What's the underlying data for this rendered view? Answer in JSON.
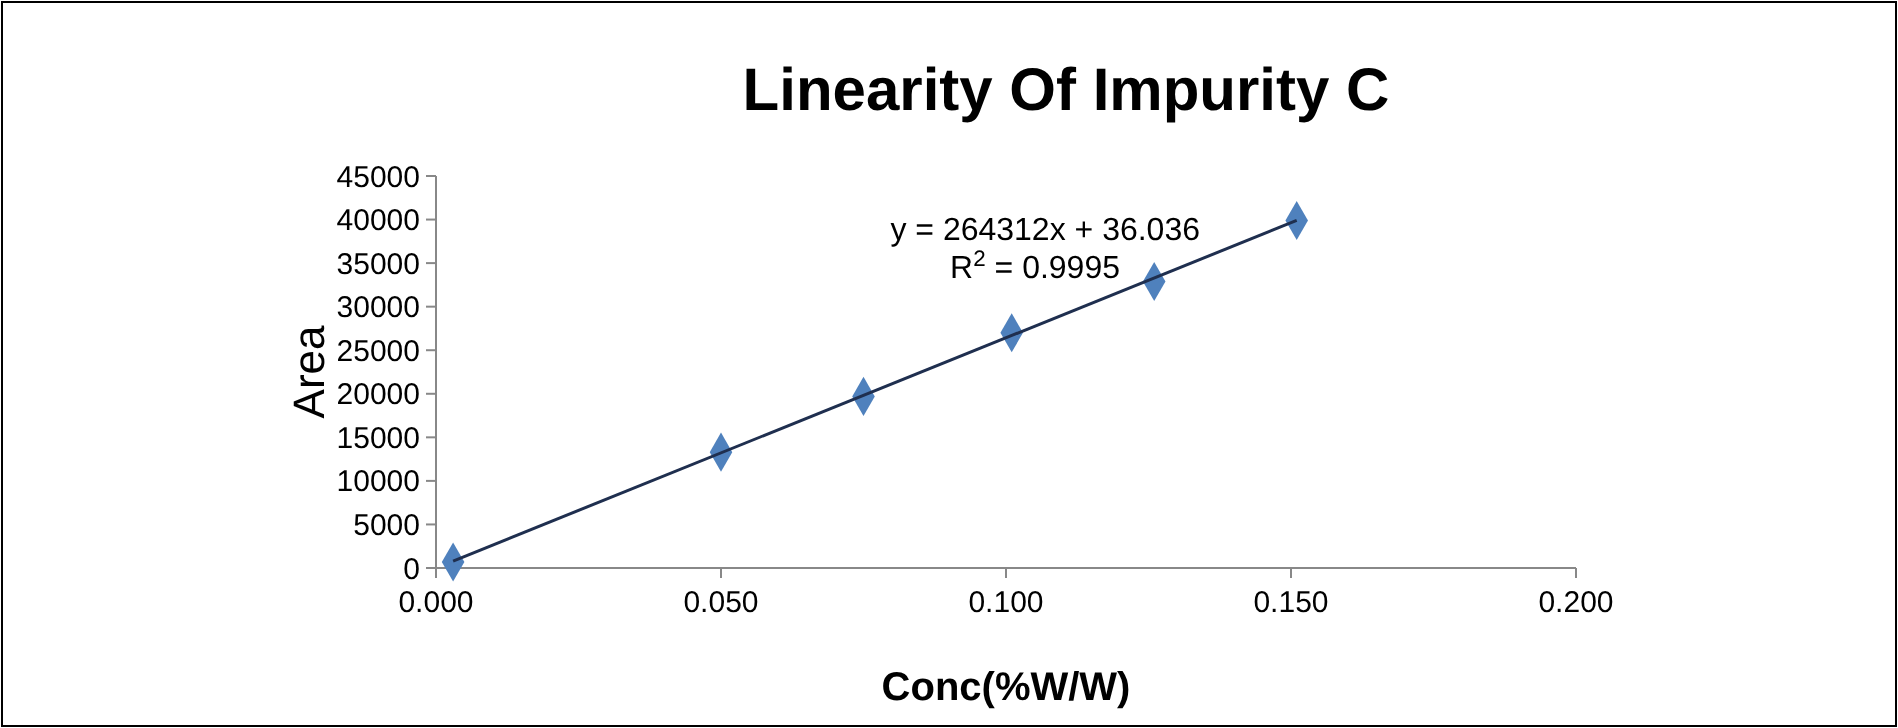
{
  "chart_data": {
    "type": "scatter",
    "title": "Linearity Of Impurity C",
    "xlabel": "Conc(%W/W)",
    "ylabel": "Area",
    "xlim": [
      0,
      0.2
    ],
    "xticks": [
      {
        "value": 0,
        "label": "0.000"
      },
      {
        "value": 0.05,
        "label": "0.050"
      },
      {
        "value": 0.1,
        "label": "0.100"
      },
      {
        "value": 0.15,
        "label": "0.150"
      },
      {
        "value": 0.2,
        "label": "0.200"
      }
    ],
    "ylim": [
      0,
      45000
    ],
    "yticks": [
      0,
      5000,
      10000,
      15000,
      20000,
      25000,
      30000,
      35000,
      40000,
      45000
    ],
    "marker": "diamond",
    "grid": false,
    "series": [
      {
        "color": "#4f81bd",
        "x": [
          0.003,
          0.05,
          0.075,
          0.101,
          0.126,
          0.151
        ],
        "values": [
          700,
          13300,
          19700,
          27000,
          32900,
          39900
        ]
      },
      {
        "type": "line",
        "marker": "none",
        "color": "#1f2f4f",
        "x": [
          0.003,
          0.151
        ],
        "values": [
          800,
          39900
        ]
      }
    ],
    "annotations": [
      "y = 264312x + 36.036",
      "R$^{2}$ = 0.9995"
    ]
  }
}
